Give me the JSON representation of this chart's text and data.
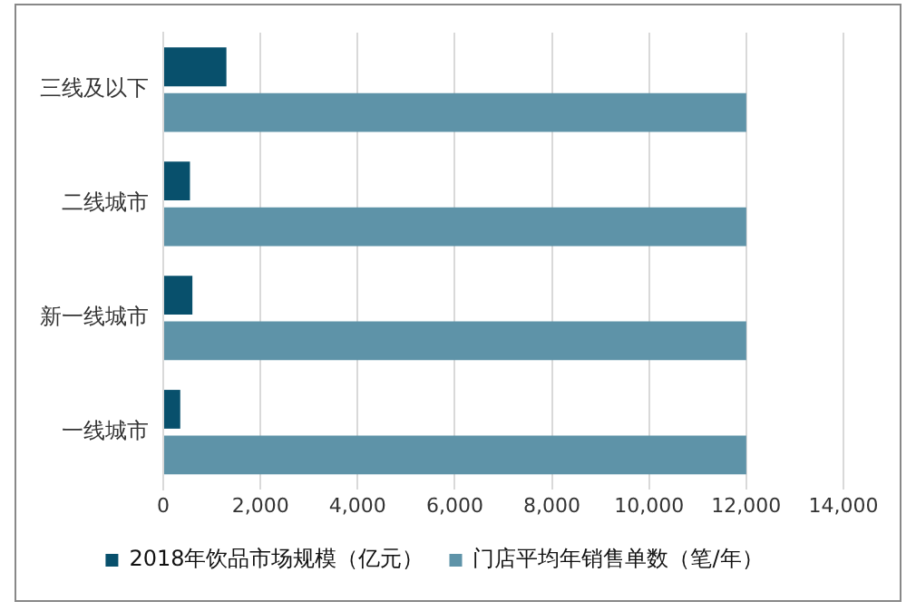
{
  "chart_data": {
    "type": "bar",
    "orientation": "horizontal",
    "categories": [
      "三线及以下",
      "二线城市",
      "新一线城市",
      "一线城市"
    ],
    "series": [
      {
        "name": "2018年饮品市场规模（亿元）",
        "color": "#08506c",
        "values": [
          1300,
          550,
          600,
          350
        ]
      },
      {
        "name": "门店平均年销售单数（笔/年）",
        "color": "#5e93a8",
        "values": [
          12000,
          12000,
          12000,
          12000
        ]
      }
    ],
    "xlim": [
      0,
      14000
    ],
    "xticks": [
      {
        "value": 0,
        "label": "0"
      },
      {
        "value": 2000,
        "label": "2,000"
      },
      {
        "value": 4000,
        "label": "4,000"
      },
      {
        "value": 6000,
        "label": "6,000"
      },
      {
        "value": 8000,
        "label": "8,000"
      },
      {
        "value": 10000,
        "label": "10,000"
      },
      {
        "value": 12000,
        "label": "12,000"
      },
      {
        "value": 14000,
        "label": "14,000"
      }
    ],
    "grid": "x",
    "legend": "bottom"
  }
}
